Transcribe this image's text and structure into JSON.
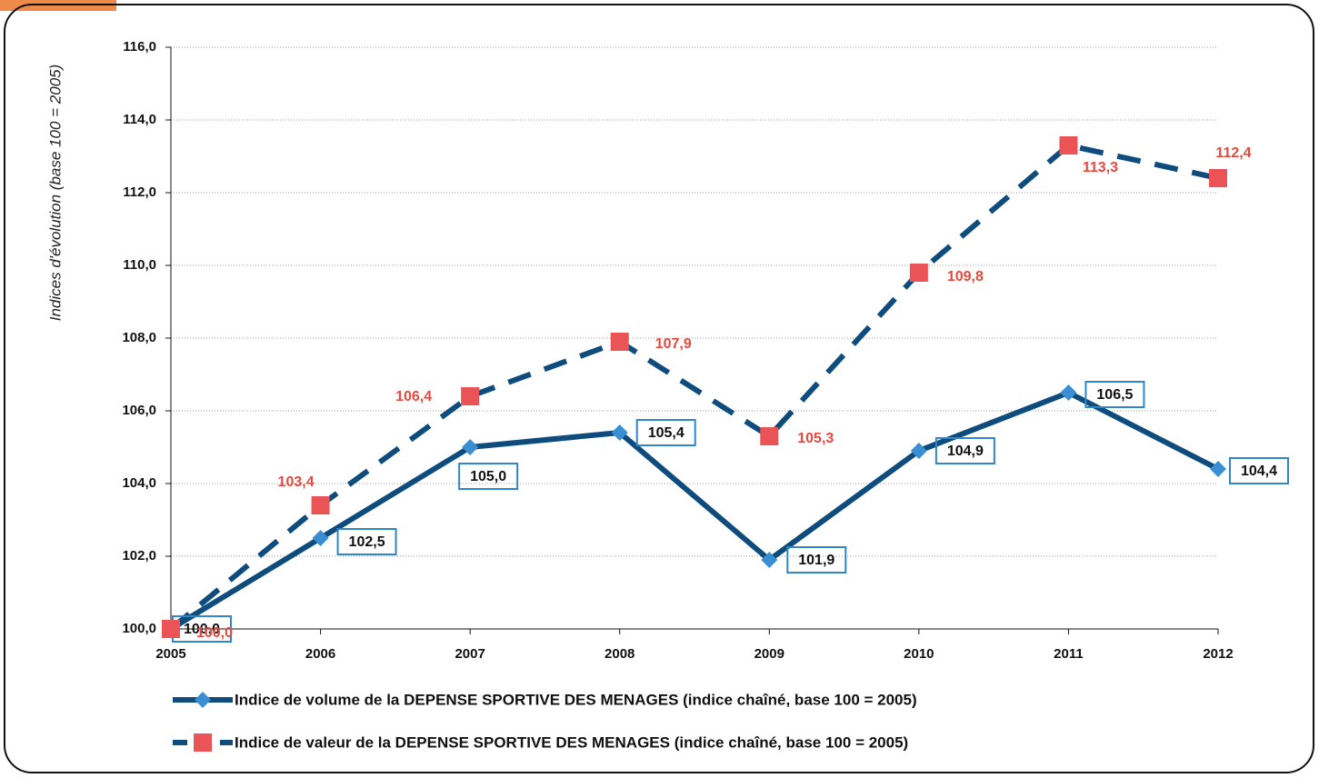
{
  "chart_data": {
    "type": "line",
    "y_label": "Indices d'évolution (base 100 = 2005)",
    "categories": [
      "2005",
      "2006",
      "2007",
      "2008",
      "2009",
      "2010",
      "2011",
      "2012"
    ],
    "series": [
      {
        "name": "Indice de volume de la DEPENSE SPORTIVE DES MENAGES (indice chaîné, base 100 = 2005)",
        "color": "#0f4c7e",
        "marker": "diamond",
        "marker_color": "#3a8fd3",
        "line_style": "solid",
        "label_color": "#111111",
        "label_box_color": "#2f86c9",
        "values": [
          100.0,
          102.5,
          105.0,
          105.4,
          101.9,
          104.9,
          106.5,
          104.4
        ],
        "value_labels": [
          "100,0",
          "102,5",
          "105,0",
          "105,4",
          "101,9",
          "104,9",
          "106,5",
          "104,4"
        ]
      },
      {
        "name": "Indice de valeur de la DEPENSE SPORTIVE DES MENAGES (indice chaîné, base 100 = 2005)",
        "color": "#0f4c7e",
        "marker": "square",
        "marker_color": "#ea5456",
        "line_style": "dashed",
        "label_color": "#e8483e",
        "values": [
          100.0,
          103.4,
          106.4,
          107.9,
          105.3,
          109.8,
          113.3,
          112.4
        ],
        "value_labels": [
          "100,0",
          "103,4",
          "106,4",
          "107,9",
          "105,3",
          "109,8",
          "113,3",
          "112,4"
        ]
      }
    ],
    "ylim": [
      100,
      116
    ],
    "yticks": [
      {
        "value": 100,
        "label": "100,0"
      },
      {
        "value": 102,
        "label": "102,0"
      },
      {
        "value": 104,
        "label": "104,0"
      },
      {
        "value": 106,
        "label": "106,0"
      },
      {
        "value": 108,
        "label": "108,0"
      },
      {
        "value": 110,
        "label": "110,0"
      },
      {
        "value": 112,
        "label": "112,0"
      },
      {
        "value": 114,
        "label": "114,0"
      },
      {
        "value": 116,
        "label": "116,0"
      }
    ],
    "grid": true
  }
}
